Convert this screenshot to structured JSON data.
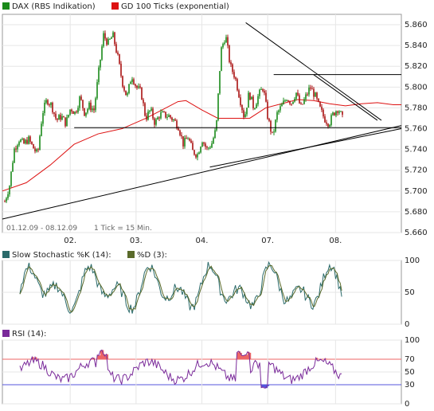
{
  "chart_data": [
    {
      "type": "candlestick",
      "legend": [
        {
          "name": "DAX (RBS Indikation)",
          "color": "#1a8a1a"
        },
        {
          "name": "GD 100 Ticks (exponential)",
          "color": "#dd1111"
        }
      ],
      "ylim": [
        5660,
        5870
      ],
      "yticks": [
        "5.660",
        "5.680",
        "5.700",
        "5.720",
        "5.740",
        "5.760",
        "5.780",
        "5.800",
        "5.820",
        "5.840",
        "5.860"
      ],
      "xticks": [
        "02.",
        "03.",
        "04.",
        "07.",
        "08."
      ],
      "date_range_label": "01.12.09 - 08.12.09",
      "tick_label": "1 Tick = 15 Min.",
      "close_path": [
        [
          0,
          5690
        ],
        [
          1,
          5705
        ],
        [
          2,
          5740
        ],
        [
          3,
          5750
        ],
        [
          4,
          5745
        ],
        [
          5,
          5750
        ],
        [
          6,
          5742
        ],
        [
          7,
          5735
        ],
        [
          8,
          5775
        ],
        [
          9,
          5788
        ],
        [
          10,
          5782
        ],
        [
          11,
          5768
        ],
        [
          12,
          5772
        ],
        [
          13,
          5765
        ],
        [
          14,
          5780
        ],
        [
          15,
          5775
        ],
        [
          16,
          5790
        ],
        [
          17,
          5775
        ],
        [
          18,
          5782
        ],
        [
          19,
          5778
        ],
        [
          20,
          5815
        ],
        [
          21,
          5850
        ],
        [
          22,
          5842
        ],
        [
          23,
          5850
        ],
        [
          24,
          5830
        ],
        [
          25,
          5805
        ],
        [
          26,
          5790
        ],
        [
          27,
          5812
        ],
        [
          28,
          5800
        ],
        [
          29,
          5795
        ],
        [
          30,
          5770
        ],
        [
          31,
          5778
        ],
        [
          32,
          5765
        ],
        [
          33,
          5774
        ],
        [
          34,
          5773
        ],
        [
          35,
          5772
        ],
        [
          36,
          5768
        ],
        [
          37,
          5762
        ],
        [
          38,
          5745
        ],
        [
          39,
          5752
        ],
        [
          40,
          5738
        ],
        [
          41,
          5735
        ],
        [
          42,
          5750
        ],
        [
          43,
          5740
        ],
        [
          44,
          5745
        ],
        [
          45,
          5760
        ],
        [
          46,
          5835
        ],
        [
          47,
          5850
        ],
        [
          48,
          5820
        ],
        [
          49,
          5810
        ],
        [
          50,
          5790
        ],
        [
          51,
          5770
        ],
        [
          52,
          5795
        ],
        [
          53,
          5780
        ],
        [
          54,
          5792
        ],
        [
          55,
          5800
        ],
        [
          56,
          5770
        ],
        [
          57,
          5752
        ],
        [
          58,
          5775
        ],
        [
          59,
          5782
        ],
        [
          60,
          5790
        ],
        [
          61,
          5785
        ],
        [
          62,
          5795
        ],
        [
          63,
          5780
        ],
        [
          64,
          5790
        ],
        [
          65,
          5800
        ],
        [
          66,
          5792
        ],
        [
          67,
          5780
        ],
        [
          68,
          5770
        ],
        [
          69,
          5765
        ],
        [
          70,
          5775
        ],
        [
          71,
          5780
        ],
        [
          72,
          5768
        ]
      ],
      "ema_path": [
        [
          0,
          5700
        ],
        [
          6,
          5708
        ],
        [
          12,
          5725
        ],
        [
          18,
          5745
        ],
        [
          24,
          5755
        ],
        [
          30,
          5760
        ],
        [
          36,
          5770
        ],
        [
          40,
          5778
        ],
        [
          44,
          5786
        ],
        [
          46,
          5787
        ],
        [
          50,
          5778
        ],
        [
          54,
          5770
        ],
        [
          58,
          5770
        ],
        [
          62,
          5770
        ],
        [
          66,
          5780
        ],
        [
          70,
          5784
        ],
        [
          74,
          5788
        ],
        [
          78,
          5787
        ],
        [
          82,
          5784
        ],
        [
          86,
          5782
        ],
        [
          90,
          5784
        ],
        [
          94,
          5785
        ],
        [
          98,
          5783
        ],
        [
          100,
          5783
        ]
      ],
      "trendlines": [
        {
          "x1": 0,
          "y1": 5673,
          "x2": 100,
          "y2": 5763
        },
        {
          "x1": 52,
          "y1": 5723,
          "x2": 100,
          "y2": 5760
        },
        {
          "x1": 61,
          "y1": 5862,
          "x2": 95,
          "y2": 5768
        },
        {
          "x1": 68,
          "y1": 5812,
          "x2": 100,
          "y2": 5812
        },
        {
          "x1": 18,
          "y1": 5761,
          "x2": 100,
          "y2": 5761
        },
        {
          "x1": 78,
          "y1": 5812,
          "x2": 94,
          "y2": 5768
        }
      ]
    },
    {
      "type": "line",
      "legend": [
        {
          "name": "Slow Stochastic %K (14):",
          "color": "#2a6a6a"
        },
        {
          "name": "%D (3):",
          "color": "#5a6a2a"
        }
      ],
      "ylim": [
        0,
        100
      ],
      "yticks": [
        "0",
        "50",
        "100"
      ]
    },
    {
      "type": "line",
      "legend": [
        {
          "name": "RSI (14):",
          "color": "#7a2a9a"
        }
      ],
      "ylim": [
        0,
        100
      ],
      "yticks": [
        "0",
        "30",
        "50",
        "70",
        "100"
      ],
      "overbought": 70,
      "oversold": 30,
      "fill_colors": {
        "overbought": "#ee6666",
        "oversold": "#5555dd"
      }
    }
  ]
}
